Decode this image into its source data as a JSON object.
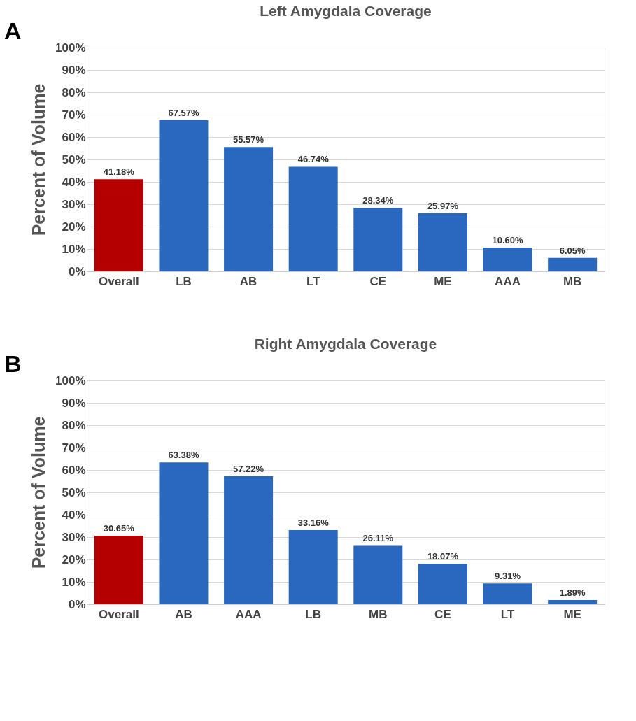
{
  "chart_data": [
    {
      "type": "bar",
      "title": "Left Amygdala Coverage",
      "ylabel": "Percent of Volume",
      "annotations": [
        "A"
      ],
      "categories": [
        "Overall",
        "LB",
        "AB",
        "LT",
        "CE",
        "ME",
        "AAA",
        "MB"
      ],
      "values": [
        41.18,
        67.57,
        55.57,
        46.74,
        28.34,
        25.97,
        10.6,
        6.05
      ],
      "colors": [
        "#b40000",
        "#2a68c0",
        "#2a68c0",
        "#2a68c0",
        "#2a68c0",
        "#2a68c0",
        "#2a68c0",
        "#2a68c0"
      ],
      "value_labels": [
        "41.18%",
        "67.57%",
        "55.57%",
        "46.74%",
        "28.34%",
        "25.97%",
        "10.60%",
        "6.05%"
      ],
      "ylim": [
        0,
        100
      ],
      "yticks": [
        {
          "value": 0,
          "label": "0%"
        },
        {
          "value": 10,
          "label": "10%"
        },
        {
          "value": 20,
          "label": "20%"
        },
        {
          "value": 30,
          "label": "30%"
        },
        {
          "value": 40,
          "label": "40%"
        },
        {
          "value": 50,
          "label": "50%"
        },
        {
          "value": 60,
          "label": "60%"
        },
        {
          "value": 70,
          "label": "70%"
        },
        {
          "value": 80,
          "label": "80%"
        },
        {
          "value": 90,
          "label": "90%"
        },
        {
          "value": 100,
          "label": "100%"
        }
      ],
      "grid": "y"
    },
    {
      "type": "bar",
      "title": "Right Amygdala Coverage",
      "ylabel": "Percent of Volume",
      "annotations": [
        "B"
      ],
      "categories": [
        "Overall",
        "AB",
        "AAA",
        "LB",
        "MB",
        "CE",
        "LT",
        "ME"
      ],
      "values": [
        30.65,
        63.38,
        57.22,
        33.16,
        26.11,
        18.07,
        9.31,
        1.89
      ],
      "colors": [
        "#b40000",
        "#2a68c0",
        "#2a68c0",
        "#2a68c0",
        "#2a68c0",
        "#2a68c0",
        "#2a68c0",
        "#2a68c0"
      ],
      "value_labels": [
        "30.65%",
        "63.38%",
        "57.22%",
        "33.16%",
        "26.11%",
        "18.07%",
        "9.31%",
        "1.89%"
      ],
      "ylim": [
        0,
        100
      ],
      "yticks": [
        {
          "value": 0,
          "label": "0%"
        },
        {
          "value": 10,
          "label": "10%"
        },
        {
          "value": 20,
          "label": "20%"
        },
        {
          "value": 30,
          "label": "30%"
        },
        {
          "value": 40,
          "label": "40%"
        },
        {
          "value": 50,
          "label": "50%"
        },
        {
          "value": 60,
          "label": "60%"
        },
        {
          "value": 70,
          "label": "70%"
        },
        {
          "value": 80,
          "label": "80%"
        },
        {
          "value": 90,
          "label": "90%"
        },
        {
          "value": 100,
          "label": "100%"
        }
      ],
      "grid": "y"
    }
  ]
}
